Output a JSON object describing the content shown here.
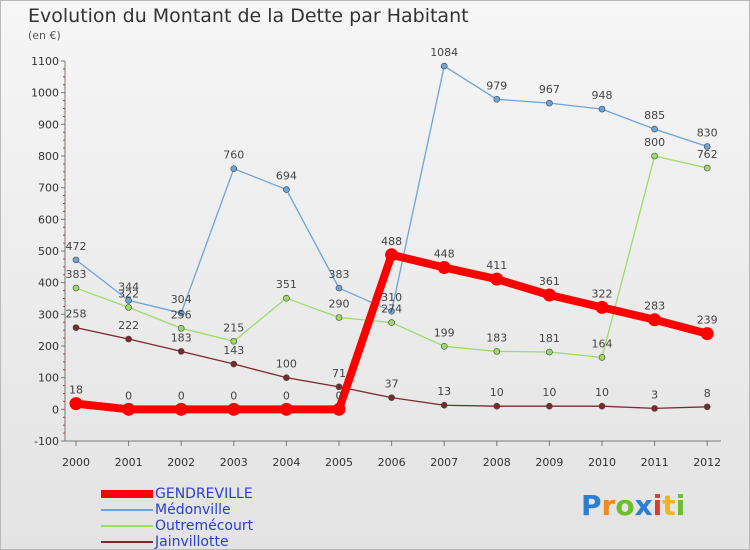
{
  "title": "Evolution du Montant de la Dette par Habitant",
  "subtitle": "(en €)",
  "logo": {
    "text": "Proxiti",
    "letters": [
      {
        "ch": "P",
        "color": "#2a7fd4"
      },
      {
        "ch": "r",
        "color": "#f08a1c"
      },
      {
        "ch": "o",
        "color": "#6cbf2a"
      },
      {
        "ch": "x",
        "color": "#2a7fd4"
      },
      {
        "ch": "i",
        "color": "#e03a2a"
      },
      {
        "ch": "t",
        "color": "#f0b51c"
      },
      {
        "ch": "i",
        "color": "#6cbf2a"
      }
    ]
  },
  "legend_labels": [
    "GENDREVILLE",
    "Médonville",
    "Outremécourt",
    "Jainvillotte"
  ],
  "chart_data": {
    "type": "line",
    "title": "Evolution du Montant de la Dette par Habitant",
    "subtitle": "(en €)",
    "xlabel": "",
    "ylabel": "",
    "x": [
      "2000",
      "2001",
      "2002",
      "2003",
      "2004",
      "2005",
      "2006",
      "2007",
      "2008",
      "2009",
      "2010",
      "2011",
      "2012"
    ],
    "ylim": [
      -100,
      1100
    ],
    "yticks": [
      -100,
      0,
      100,
      200,
      300,
      400,
      500,
      600,
      700,
      800,
      900,
      1000,
      1100
    ],
    "grid": false,
    "legend_position": "bottom-left",
    "series": [
      {
        "name": "GENDREVILLE",
        "color": "#ff0000",
        "values": [
          18,
          0,
          0,
          0,
          0,
          0,
          488,
          448,
          411,
          361,
          322,
          283,
          239
        ],
        "labels": [
          "18",
          "0",
          "0",
          "0",
          "0",
          "0",
          "488",
          "448",
          "411",
          "361",
          "322",
          "283",
          "239"
        ]
      },
      {
        "name": "Médonville",
        "color": "#6ea3d8",
        "values": [
          472,
          344,
          304,
          760,
          694,
          383,
          310,
          1084,
          979,
          967,
          948,
          885,
          830
        ],
        "labels": [
          "472",
          "344",
          "304",
          "760",
          "694",
          "383",
          "310",
          "1084",
          "979",
          "967",
          "948",
          "885",
          "830"
        ]
      },
      {
        "name": "Outremécourt",
        "color": "#99dd66",
        "values": [
          383,
          322,
          256,
          215,
          351,
          290,
          274,
          199,
          183,
          181,
          164,
          800,
          762
        ],
        "labels": [
          "383",
          "322",
          "256",
          "215",
          "351",
          "290",
          "274",
          "199",
          "183",
          "181",
          "164",
          "800",
          "762"
        ]
      },
      {
        "name": "Jainvillotte",
        "color": "#7a2a2a",
        "values": [
          258,
          222,
          183,
          143,
          100,
          71,
          37,
          13,
          10,
          10,
          10,
          3,
          8
        ],
        "labels": [
          "258",
          "222",
          "183",
          "143",
          "100",
          "71",
          "37",
          "13",
          "10",
          "10",
          "10",
          "3",
          "8"
        ]
      }
    ]
  }
}
